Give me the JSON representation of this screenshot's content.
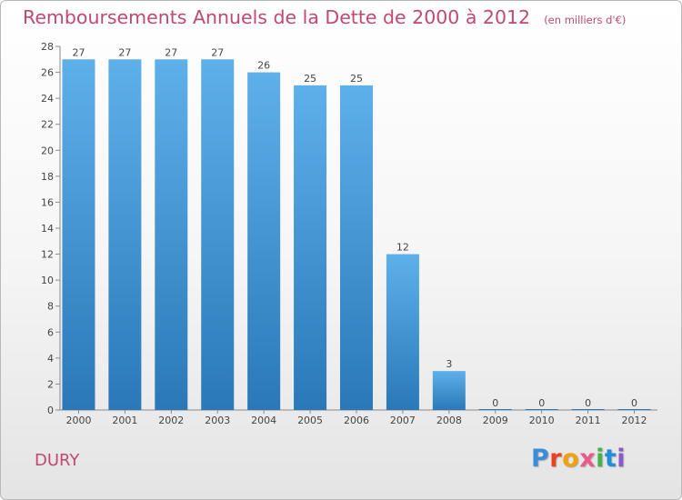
{
  "title": "Remboursements Annuels de la Dette de 2000 à 2012",
  "subtitle": "(en milliers d'€)",
  "commune": "DURY",
  "logo": {
    "letters": [
      "P",
      "r",
      "o",
      "x",
      "i",
      "t",
      "i"
    ]
  },
  "colors": {
    "bar_top": "#5eb0ea",
    "bar_bottom": "#2a78b8",
    "title": "#c04873"
  },
  "chart_data": {
    "type": "bar",
    "categories": [
      "2000",
      "2001",
      "2002",
      "2003",
      "2004",
      "2005",
      "2006",
      "2007",
      "2008",
      "2009",
      "2010",
      "2011",
      "2012"
    ],
    "values": [
      27,
      27,
      27,
      27,
      26,
      25,
      25,
      12,
      3,
      0,
      0,
      0,
      0
    ],
    "title": "Remboursements Annuels de la Dette de 2000 à 2012",
    "xlabel": "",
    "ylabel": "",
    "ylim": [
      0,
      28
    ],
    "yticks": [
      0,
      2,
      4,
      6,
      8,
      10,
      12,
      14,
      16,
      18,
      20,
      22,
      24,
      26,
      28
    ],
    "grid": false,
    "legend": "none"
  }
}
